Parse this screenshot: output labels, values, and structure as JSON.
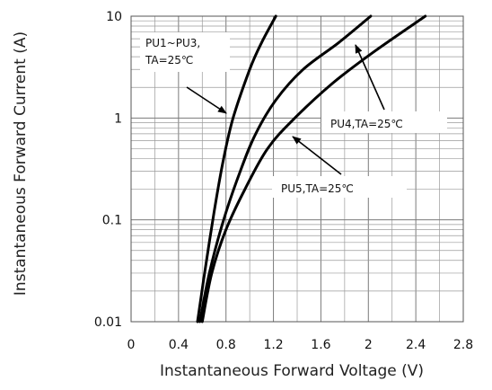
{
  "chart_data": {
    "type": "line",
    "xlabel": "Instantaneous Forward Voltage (V)",
    "ylabel": "Instantaneous Forward Current (A)",
    "xlim": [
      0,
      2.8
    ],
    "ylim": [
      0.01,
      10
    ],
    "y_scale": "log",
    "x_ticks": [
      0,
      0.4,
      0.8,
      1.2,
      1.6,
      2.0,
      2.4,
      2.8
    ],
    "x_tick_labels": [
      "0",
      "0.4",
      "0.8",
      "1.2",
      "1.6",
      "2",
      "2.4",
      "2.8"
    ],
    "y_ticks": [
      0.01,
      0.1,
      1,
      10
    ],
    "y_tick_labels": [
      "0.01",
      "0.1",
      "1",
      "10"
    ],
    "grid": true,
    "series": [
      {
        "name": "PU1~PU3, TA=25℃",
        "x": [
          0.56,
          0.62,
          0.7,
          0.78,
          0.86,
          1.0,
          1.1,
          1.22
        ],
        "y": [
          0.01,
          0.03,
          0.12,
          0.4,
          1.0,
          3.0,
          5.5,
          10
        ]
      },
      {
        "name": "PU4,TA=25℃",
        "x": [
          0.58,
          0.66,
          0.78,
          0.92,
          1.05,
          1.22,
          1.45,
          1.75,
          2.02
        ],
        "y": [
          0.01,
          0.03,
          0.1,
          0.3,
          0.7,
          1.5,
          3.0,
          5.5,
          10
        ]
      },
      {
        "name": "PU5,TA=25℃",
        "x": [
          0.6,
          0.68,
          0.8,
          0.96,
          1.15,
          1.38,
          1.7,
          2.05,
          2.48
        ],
        "y": [
          0.01,
          0.03,
          0.08,
          0.2,
          0.5,
          1.0,
          2.2,
          4.5,
          10
        ]
      }
    ],
    "annotations": [
      {
        "lines": [
          "PU1~PU3,",
          "TA=25℃"
        ],
        "target": "PU1~PU3, TA=25℃"
      },
      {
        "lines": [
          "PU4,TA=25℃"
        ],
        "target": "PU4,TA=25℃"
      },
      {
        "lines": [
          "PU5,TA=25℃"
        ],
        "target": "PU5,TA=25℃"
      }
    ]
  }
}
